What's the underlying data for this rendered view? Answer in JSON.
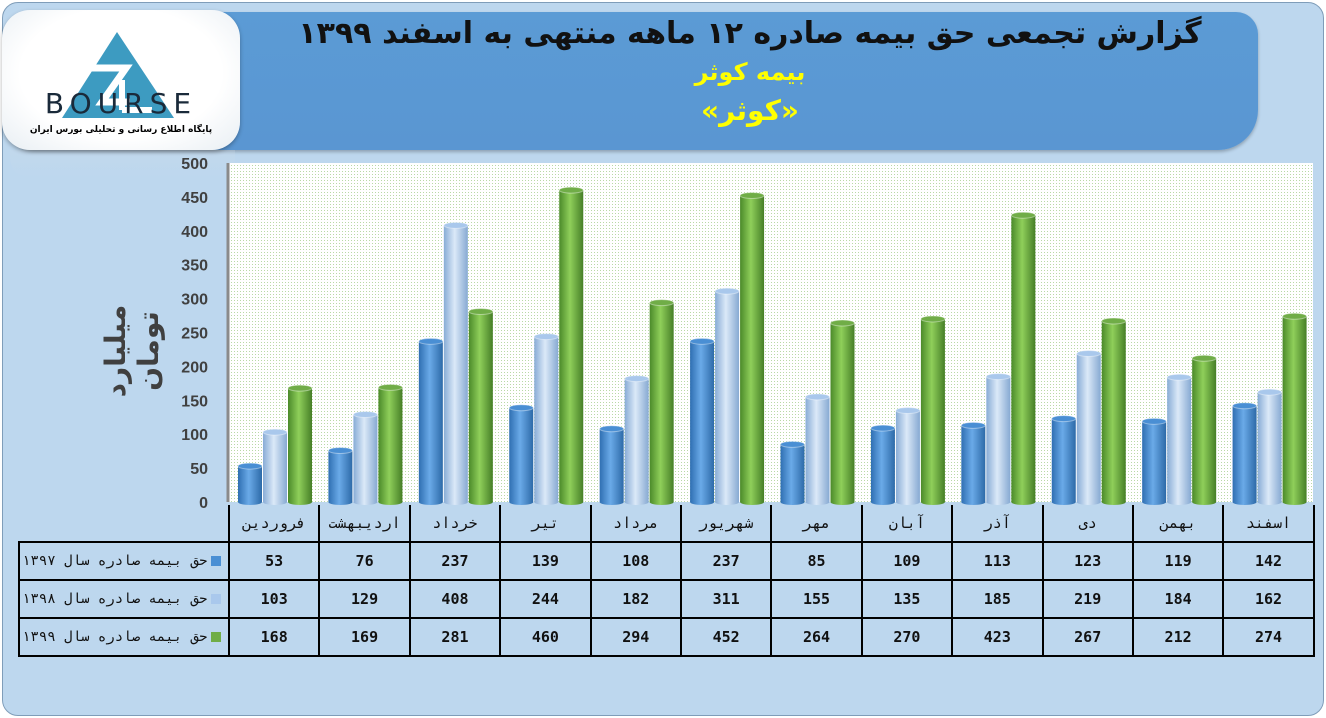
{
  "header": {
    "title": "گزارش تجمعی حق بیمه صادره ۱۲ ماهه منتهی به اسفند ۱۳۹۹",
    "company": "بیمه کوثر",
    "symbol": "«کوثر»"
  },
  "logo": {
    "text": "BOURSE",
    "subtitle": "پایگاه اطلاع رسانی و تحلیلی بورس ایران",
    "number": "24"
  },
  "chart_data": {
    "type": "bar",
    "title": "گزارش تجمعی حق بیمه صادره ۱۲ ماهه منتهی به اسفند ۱۳۹۹",
    "ylabel": "میلیارد تومان",
    "xlabel": "",
    "ylim": [
      0,
      500
    ],
    "yticks": [
      0,
      50,
      100,
      150,
      200,
      250,
      300,
      350,
      400,
      450,
      500
    ],
    "categories": [
      "فروردین",
      "اردیبهشت",
      "خرداد",
      "تیر",
      "مرداد",
      "شهریور",
      "مهر",
      "آبان",
      "آذر",
      "دی",
      "بهمن",
      "اسفند"
    ],
    "series": [
      {
        "name": "حق بیمه صادره سال ۱۳۹۷",
        "color": "#4a8fd4",
        "values": [
          53,
          76,
          237,
          139,
          108,
          237,
          85,
          109,
          113,
          123,
          119,
          142
        ]
      },
      {
        "name": "حق بیمه صادره سال ۱۳۹۸",
        "color": "#a9c8ec",
        "values": [
          103,
          129,
          408,
          244,
          182,
          311,
          155,
          135,
          185,
          219,
          184,
          162
        ]
      },
      {
        "name": "حق بیمه صادره سال ۱۳۹۹",
        "color": "#70ad47",
        "values": [
          168,
          169,
          281,
          460,
          294,
          452,
          264,
          270,
          423,
          267,
          212,
          274
        ]
      }
    ],
    "grid": true,
    "legend": "data-table"
  }
}
